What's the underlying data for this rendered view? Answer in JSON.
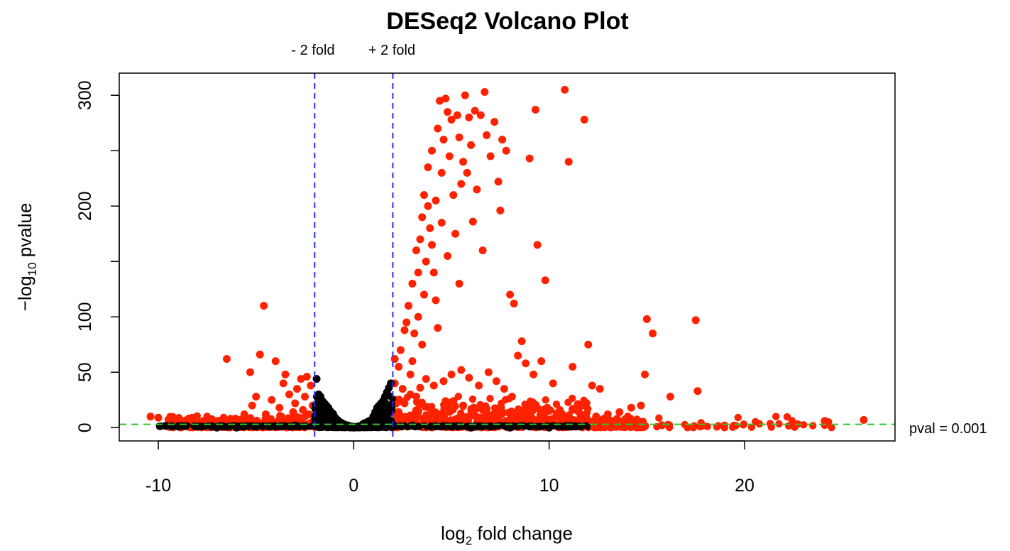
{
  "chart_data": {
    "type": "scatter",
    "title": "DESeq2 Volcano Plot",
    "xlabel_base": "log",
    "xlabel_sub": "2",
    "xlabel_rest": " fold change",
    "ylabel_base": "−log",
    "ylabel_sub": "10",
    "ylabel_rest": " pvalue",
    "xlim": [
      -12,
      27.7
    ],
    "ylim": [
      -12,
      320
    ],
    "x_ticks": [
      -10,
      0,
      10,
      20
    ],
    "x_tick_labels": [
      "-10",
      "0",
      "10",
      "20"
    ],
    "y_ticks": [
      0,
      50,
      100,
      150,
      200,
      250,
      300
    ],
    "y_tick_labels": [
      "0",
      "50",
      "100",
      "",
      "200",
      "",
      "300"
    ],
    "grid": false,
    "legend": "none",
    "colors": {
      "significant": "#ff2200",
      "not_significant": "#000000",
      "fold_line": "#2b2bff",
      "pval_line": "#2ec52e"
    },
    "fold_threshold_lines": [
      {
        "x": -2,
        "label": "- 2 fold"
      },
      {
        "x": 2,
        "label": "+ 2 fold"
      }
    ],
    "pval_threshold_line": {
      "y": 3,
      "label": "pval = 0.001"
    },
    "series": [
      {
        "points": [
          [
            -10.4,
            10
          ],
          [
            -10.0,
            9
          ],
          [
            -9.2,
            7
          ],
          [
            -8.8,
            6
          ],
          [
            -8.3,
            6
          ],
          [
            -7.8,
            5
          ],
          [
            -7.3,
            7
          ],
          [
            -6.9,
            5
          ],
          [
            -6.5,
            62
          ],
          [
            -6.3,
            8
          ],
          [
            -6.0,
            6
          ],
          [
            -5.6,
            12
          ],
          [
            -5.3,
            50
          ],
          [
            -5.2,
            20
          ],
          [
            -5.0,
            28
          ],
          [
            -4.8,
            66
          ],
          [
            -4.6,
            110
          ],
          [
            -4.5,
            12
          ],
          [
            -4.2,
            25
          ],
          [
            -4.0,
            60
          ],
          [
            -3.8,
            18
          ],
          [
            -3.6,
            40
          ],
          [
            -3.5,
            48
          ],
          [
            -3.3,
            30
          ],
          [
            -3.1,
            14
          ],
          [
            -3.0,
            22
          ],
          [
            -2.9,
            35
          ],
          [
            -2.7,
            44
          ],
          [
            -2.6,
            16
          ],
          [
            -2.5,
            28
          ],
          [
            -2.4,
            46
          ],
          [
            -2.3,
            12
          ],
          [
            -2.2,
            38
          ],
          [
            -2.1,
            20
          ],
          [
            -3.7,
            10
          ],
          [
            -3.2,
            8
          ],
          [
            -2.8,
            9
          ],
          [
            -4.4,
            6
          ],
          [
            2.1,
            62
          ],
          [
            2.1,
            40
          ],
          [
            2.2,
            25
          ],
          [
            2.2,
            12
          ],
          [
            2.3,
            55
          ],
          [
            2.4,
            70
          ],
          [
            2.5,
            35
          ],
          [
            2.6,
            88
          ],
          [
            2.7,
            95
          ],
          [
            2.8,
            110
          ],
          [
            2.9,
            48
          ],
          [
            3.0,
            60
          ],
          [
            3.0,
            130
          ],
          [
            3.1,
            85
          ],
          [
            3.2,
            160
          ],
          [
            3.2,
            28
          ],
          [
            3.3,
            140
          ],
          [
            3.3,
            100
          ],
          [
            3.4,
            170
          ],
          [
            3.5,
            75
          ],
          [
            3.5,
            190
          ],
          [
            3.6,
            210
          ],
          [
            3.6,
            120
          ],
          [
            3.7,
            150
          ],
          [
            3.8,
            200
          ],
          [
            3.8,
            235
          ],
          [
            3.9,
            180
          ],
          [
            4.0,
            250
          ],
          [
            4.0,
            165
          ],
          [
            4.1,
            140
          ],
          [
            4.2,
            205
          ],
          [
            4.2,
            115
          ],
          [
            4.3,
            270
          ],
          [
            4.3,
            90
          ],
          [
            4.4,
            295
          ],
          [
            4.5,
            230
          ],
          [
            4.5,
            185
          ],
          [
            4.6,
            260
          ],
          [
            4.7,
            297
          ],
          [
            4.8,
            285
          ],
          [
            4.8,
            155
          ],
          [
            4.9,
            245
          ],
          [
            5.0,
            278
          ],
          [
            5.1,
            210
          ],
          [
            5.2,
            175
          ],
          [
            5.3,
            282
          ],
          [
            5.4,
            262
          ],
          [
            5.4,
            130
          ],
          [
            5.5,
            220
          ],
          [
            5.6,
            240
          ],
          [
            5.7,
            300
          ],
          [
            5.8,
            230
          ],
          [
            5.9,
            280
          ],
          [
            6.0,
            255
          ],
          [
            6.1,
            186
          ],
          [
            6.2,
            286
          ],
          [
            6.3,
            215
          ],
          [
            6.5,
            282
          ],
          [
            6.6,
            160
          ],
          [
            6.7,
            303
          ],
          [
            6.8,
            264
          ],
          [
            7.0,
            245
          ],
          [
            7.2,
            276
          ],
          [
            7.4,
            222
          ],
          [
            7.5,
            196
          ],
          [
            7.6,
            260
          ],
          [
            7.8,
            250
          ],
          [
            8.0,
            120
          ],
          [
            8.2,
            112
          ],
          [
            8.4,
            65
          ],
          [
            8.6,
            78
          ],
          [
            8.8,
            58
          ],
          [
            9.0,
            243
          ],
          [
            9.2,
            48
          ],
          [
            9.3,
            287
          ],
          [
            9.4,
            165
          ],
          [
            9.6,
            60
          ],
          [
            9.8,
            133
          ],
          [
            10.2,
            40
          ],
          [
            10.8,
            305
          ],
          [
            11.0,
            240
          ],
          [
            11.2,
            55
          ],
          [
            11.8,
            278
          ],
          [
            12.0,
            75
          ],
          [
            12.2,
            38
          ],
          [
            12.6,
            35
          ],
          [
            14.9,
            48
          ],
          [
            15.0,
            98
          ],
          [
            15.3,
            85
          ],
          [
            16.2,
            28
          ],
          [
            17.5,
            97
          ],
          [
            17.6,
            33
          ],
          [
            24.1,
            6
          ],
          [
            26.1,
            7
          ],
          [
            11.5,
            15
          ],
          [
            12.4,
            10
          ],
          [
            13.0,
            12
          ],
          [
            13.6,
            14
          ],
          [
            14.2,
            18
          ],
          [
            14.7,
            20
          ],
          [
            12.8,
            8
          ],
          [
            13.9,
            5
          ],
          [
            10.5,
            12
          ],
          [
            9.9,
            18
          ],
          [
            9.1,
            22
          ],
          [
            8.7,
            15
          ],
          [
            8.1,
            28
          ],
          [
            7.7,
            35
          ],
          [
            7.3,
            42
          ],
          [
            6.9,
            50
          ],
          [
            6.4,
            38
          ],
          [
            5.9,
            45
          ],
          [
            5.5,
            52
          ],
          [
            5.0,
            48
          ],
          [
            4.6,
            42
          ],
          [
            4.1,
            38
          ],
          [
            3.7,
            44
          ],
          [
            3.4,
            36
          ],
          [
            2.9,
            30
          ],
          [
            2.6,
            22
          ],
          [
            2.3,
            14
          ],
          [
            2.5,
            8
          ],
          [
            3.1,
            12
          ],
          [
            3.9,
            18
          ],
          [
            4.7,
            24
          ],
          [
            5.6,
            20
          ],
          [
            6.6,
            16
          ],
          [
            7.5,
            12
          ],
          [
            8.4,
            10
          ],
          [
            9.5,
            8
          ],
          [
            10.9,
            6
          ],
          [
            11.9,
            9
          ],
          [
            12.9,
            6
          ],
          [
            13.3,
            4
          ],
          [
            14.0,
            7
          ]
        ],
        "color": "#ff2200"
      },
      {
        "points": [
          [
            -1.9,
            44
          ],
          [
            -1.8,
            30
          ],
          [
            -1.7,
            28
          ],
          [
            -1.6,
            24
          ],
          [
            -1.5,
            22
          ],
          [
            -1.4,
            20
          ],
          [
            -1.3,
            18
          ],
          [
            -1.2,
            15
          ],
          [
            -1.1,
            12
          ],
          [
            -1.0,
            10
          ],
          [
            -0.9,
            8
          ],
          [
            -0.8,
            6
          ],
          [
            -0.7,
            5
          ],
          [
            -0.6,
            4
          ],
          [
            -0.5,
            3
          ],
          [
            -0.4,
            2
          ],
          [
            -0.3,
            2
          ],
          [
            -0.2,
            1
          ],
          [
            -0.1,
            1
          ],
          [
            0.0,
            0
          ],
          [
            0.2,
            1
          ],
          [
            0.4,
            2
          ],
          [
            0.6,
            4
          ],
          [
            0.8,
            6
          ],
          [
            1.0,
            10
          ],
          [
            1.1,
            14
          ],
          [
            1.2,
            18
          ],
          [
            1.3,
            20
          ],
          [
            1.4,
            22
          ],
          [
            1.5,
            24
          ],
          [
            1.6,
            28
          ],
          [
            1.7,
            32
          ],
          [
            1.8,
            36
          ],
          [
            1.9,
            40
          ],
          [
            -1.85,
            18
          ],
          [
            -1.75,
            12
          ],
          [
            -1.6,
            8
          ],
          [
            1.85,
            20
          ],
          [
            1.75,
            12
          ],
          [
            1.6,
            8
          ],
          [
            -3.0,
            2
          ],
          [
            -4.0,
            1
          ],
          [
            -5.0,
            1
          ],
          [
            -6.0,
            0
          ],
          [
            3.0,
            2
          ],
          [
            4.0,
            1
          ],
          [
            5.0,
            1
          ],
          [
            6.0,
            0
          ],
          [
            7.0,
            1
          ],
          [
            8.0,
            0
          ],
          [
            9.0,
            1
          ],
          [
            10.0,
            0
          ],
          [
            11.0,
            1
          ],
          [
            -7.0,
            0
          ],
          [
            -8.0,
            1
          ]
        ],
        "color": "#000000"
      }
    ]
  }
}
